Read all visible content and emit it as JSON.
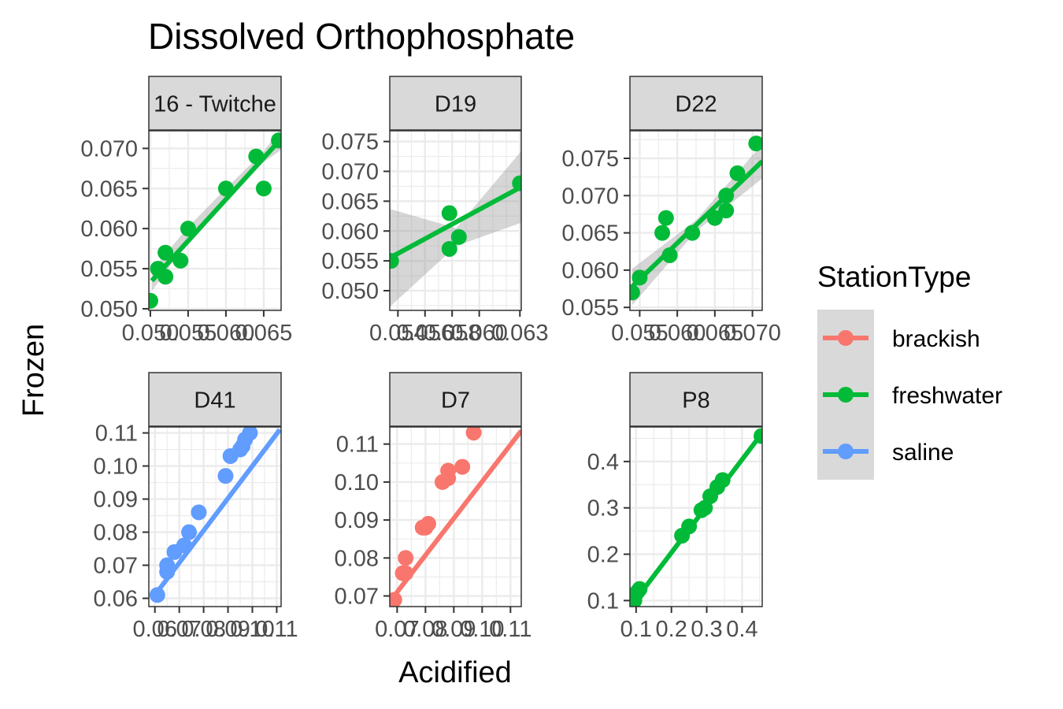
{
  "chart_data": {
    "type": "scatter",
    "title": "Dissolved Orthophosphate",
    "xlabel": "Acidified",
    "ylabel": "Frozen",
    "grid": true,
    "legend": {
      "title": "StationType",
      "position": "right",
      "entries": [
        {
          "name": "brackish",
          "color": "#F8766D"
        },
        {
          "name": "freshwater",
          "color": "#00BA38"
        },
        {
          "name": "saline",
          "color": "#619CFF"
        }
      ]
    },
    "panels": [
      {
        "label": "16 - Twitche",
        "station_type": "freshwater",
        "xlim": [
          0.0498,
          0.0673
        ],
        "ylim": [
          0.0498,
          0.0722
        ],
        "xticks": [
          0.05,
          0.0525,
          0.055,
          0.0575,
          0.06,
          0.0625,
          0.065
        ],
        "xtick_labels": [
          "0.050",
          "",
          "0.055",
          "",
          "0.060",
          "",
          "0.065"
        ],
        "yticks": [
          0.05,
          0.0525,
          0.055,
          0.0575,
          0.06,
          0.0625,
          0.065,
          0.0675,
          0.07
        ],
        "ytick_labels": [
          "0.050",
          "",
          "0.055",
          "",
          "0.060",
          "",
          "0.065",
          "",
          "0.070"
        ],
        "points": [
          [
            0.05,
            0.051
          ],
          [
            0.051,
            0.055
          ],
          [
            0.052,
            0.057
          ],
          [
            0.052,
            0.054
          ],
          [
            0.054,
            0.056
          ],
          [
            0.055,
            0.06
          ],
          [
            0.06,
            0.065
          ],
          [
            0.064,
            0.069
          ],
          [
            0.065,
            0.065
          ],
          [
            0.067,
            0.071
          ]
        ],
        "fit": [
          [
            0.0502,
            0.0535
          ],
          [
            0.0673,
            0.0712
          ]
        ],
        "band": {
          "x": [
            0.0502,
            0.055,
            0.06,
            0.065,
            0.0673
          ],
          "lo": [
            0.0522,
            0.0585,
            0.0637,
            0.0683,
            0.0698
          ],
          "hi": [
            0.0548,
            0.0602,
            0.065,
            0.0696,
            0.0726
          ]
        }
      },
      {
        "label": "D19",
        "station_type": "freshwater",
        "xlim": [
          0.0534,
          0.0631
        ],
        "ylim": [
          0.0467,
          0.0768
        ],
        "xticks": [
          0.054,
          0.055,
          0.056,
          0.057,
          0.058,
          0.059,
          0.06,
          0.061,
          0.062,
          0.063
        ],
        "xtick_labels": [
          "0.054",
          "",
          "0.056",
          "",
          "0.058",
          "",
          "0.060",
          "",
          "",
          "0.063"
        ],
        "yticks": [
          0.0475,
          0.05,
          0.0525,
          0.055,
          0.0575,
          0.06,
          0.0625,
          0.065,
          0.0675,
          0.07,
          0.0725,
          0.075
        ],
        "ytick_labels": [
          "",
          "0.050",
          "",
          "0.055",
          "",
          "0.060",
          "",
          "0.065",
          "",
          "0.070",
          "",
          "0.075"
        ],
        "points": [
          [
            0.0535,
            0.055
          ],
          [
            0.0578,
            0.063
          ],
          [
            0.0578,
            0.057
          ],
          [
            0.0585,
            0.059
          ],
          [
            0.063,
            0.068
          ]
        ],
        "fit": [
          [
            0.0534,
            0.0555
          ],
          [
            0.0631,
            0.0674
          ]
        ],
        "band": {
          "x": [
            0.0534,
            0.0583,
            0.0631
          ],
          "lo": [
            0.0473,
            0.0575,
            0.0614
          ],
          "hi": [
            0.0637,
            0.0605,
            0.0734
          ]
        }
      },
      {
        "label": "D22",
        "station_type": "freshwater",
        "xlim": [
          0.0537,
          0.0713
        ],
        "ylim": [
          0.0546,
          0.0787
        ],
        "xticks": [
          0.055,
          0.0575,
          0.06,
          0.0625,
          0.065,
          0.0675,
          0.07
        ],
        "xtick_labels": [
          "0.055",
          "",
          "0.060",
          "",
          "0.065",
          "",
          "0.070"
        ],
        "yticks": [
          0.055,
          0.0575,
          0.06,
          0.0625,
          0.065,
          0.0675,
          0.07,
          0.0725,
          0.075,
          0.0775
        ],
        "ytick_labels": [
          "0.055",
          "",
          "0.060",
          "",
          "0.065",
          "",
          "0.070",
          "",
          "0.075",
          ""
        ],
        "points": [
          [
            0.054,
            0.057
          ],
          [
            0.055,
            0.059
          ],
          [
            0.058,
            0.065
          ],
          [
            0.0585,
            0.067
          ],
          [
            0.059,
            0.062
          ],
          [
            0.062,
            0.065
          ],
          [
            0.065,
            0.067
          ],
          [
            0.0665,
            0.07
          ],
          [
            0.0665,
            0.068
          ],
          [
            0.068,
            0.073
          ],
          [
            0.0705,
            0.077
          ]
        ],
        "fit": [
          [
            0.054,
            0.0578
          ],
          [
            0.0713,
            0.0746
          ]
        ],
        "band": {
          "x": [
            0.054,
            0.0625,
            0.0713
          ],
          "lo": [
            0.0553,
            0.0652,
            0.0723
          ],
          "hi": [
            0.0602,
            0.0667,
            0.0769
          ]
        }
      },
      {
        "label": "D41",
        "station_type": "saline",
        "xlim": [
          0.0575,
          0.1118
        ],
        "ylim": [
          0.0575,
          0.1118
        ],
        "xticks": [
          0.06,
          0.065,
          0.07,
          0.075,
          0.08,
          0.085,
          0.09,
          0.095,
          0.1,
          0.105,
          0.11
        ],
        "xtick_labels": [
          "0.06",
          "",
          "0.07",
          "",
          "0.08",
          "",
          "0.09",
          "",
          "0.10",
          "",
          "0.11"
        ],
        "yticks": [
          0.06,
          0.065,
          0.07,
          0.075,
          0.08,
          0.085,
          0.09,
          0.095,
          0.1,
          0.105,
          0.11
        ],
        "ytick_labels": [
          "0.06",
          "",
          "0.07",
          "",
          "0.08",
          "",
          "0.09",
          "",
          "0.10",
          "",
          "0.11"
        ],
        "points": [
          [
            0.061,
            0.061
          ],
          [
            0.065,
            0.068
          ],
          [
            0.065,
            0.07
          ],
          [
            0.068,
            0.074
          ],
          [
            0.072,
            0.076
          ],
          [
            0.074,
            0.08
          ],
          [
            0.078,
            0.086
          ],
          [
            0.089,
            0.097
          ],
          [
            0.091,
            0.103
          ],
          [
            0.095,
            0.105
          ],
          [
            0.096,
            0.106
          ],
          [
            0.097,
            0.108
          ],
          [
            0.099,
            0.11
          ]
        ],
        "fit": [
          [
            0.06,
            0.061
          ],
          [
            0.1113,
            0.111
          ]
        ],
        "band": {
          "x": [
            0.06,
            0.1113
          ],
          "lo": [
            0.0605,
            0.1105
          ],
          "hi": [
            0.0615,
            0.1115
          ]
        }
      },
      {
        "label": "D7",
        "station_type": "brackish",
        "xlim": [
          0.0674,
          0.1138
        ],
        "ylim": [
          0.0672,
          0.1145
        ],
        "xticks": [
          0.07,
          0.075,
          0.08,
          0.085,
          0.09,
          0.095,
          0.1,
          0.105,
          0.11
        ],
        "xtick_labels": [
          "0.07",
          "",
          "0.08",
          "",
          "0.09",
          "",
          "0.10",
          "",
          "0.11"
        ],
        "yticks": [
          0.07,
          0.075,
          0.08,
          0.085,
          0.09,
          0.095,
          0.1,
          0.105,
          0.11
        ],
        "ytick_labels": [
          "0.07",
          "",
          "0.08",
          "",
          "0.09",
          "",
          "0.10",
          "",
          "0.11"
        ],
        "points": [
          [
            0.069,
            0.069
          ],
          [
            0.072,
            0.076
          ],
          [
            0.073,
            0.08
          ],
          [
            0.073,
            0.076
          ],
          [
            0.079,
            0.088
          ],
          [
            0.08,
            0.088
          ],
          [
            0.081,
            0.089
          ],
          [
            0.086,
            0.1
          ],
          [
            0.088,
            0.101
          ],
          [
            0.088,
            0.103
          ],
          [
            0.093,
            0.104
          ],
          [
            0.097,
            0.113
          ]
        ],
        "fit": [
          [
            0.0674,
            0.0685
          ],
          [
            0.1138,
            0.1135
          ]
        ],
        "band": {
          "x": [
            0.0674,
            0.1138
          ],
          "lo": [
            0.0679,
            0.1128
          ],
          "hi": [
            0.0691,
            0.1142
          ]
        }
      },
      {
        "label": "P8",
        "station_type": "freshwater",
        "xlim": [
          0.0825,
          0.4571
        ],
        "ylim": [
          0.087,
          0.4745
        ],
        "xticks": [
          0.1,
          0.15,
          0.2,
          0.25,
          0.3,
          0.35,
          0.4,
          0.45
        ],
        "xtick_labels": [
          "0.1",
          "",
          "0.2",
          "",
          "0.3",
          "",
          "0.4",
          ""
        ],
        "yticks": [
          0.1,
          0.15,
          0.2,
          0.25,
          0.3,
          0.35,
          0.4,
          0.45
        ],
        "ytick_labels": [
          "0.1",
          "",
          "0.2",
          "",
          "0.3",
          "",
          "0.4",
          ""
        ],
        "points": [
          [
            0.095,
            0.1
          ],
          [
            0.1,
            0.115
          ],
          [
            0.105,
            0.12
          ],
          [
            0.11,
            0.125
          ],
          [
            0.23,
            0.24
          ],
          [
            0.25,
            0.26
          ],
          [
            0.285,
            0.295
          ],
          [
            0.295,
            0.3
          ],
          [
            0.31,
            0.325
          ],
          [
            0.33,
            0.345
          ],
          [
            0.345,
            0.36
          ],
          [
            0.455,
            0.455
          ]
        ],
        "fit": [
          [
            0.0825,
            0.0855
          ],
          [
            0.4571,
            0.4615
          ]
        ],
        "band": {
          "x": [
            0.0825,
            0.4571
          ],
          "lo": [
            0.083,
            0.458
          ],
          "hi": [
            0.088,
            0.465
          ]
        }
      }
    ]
  }
}
